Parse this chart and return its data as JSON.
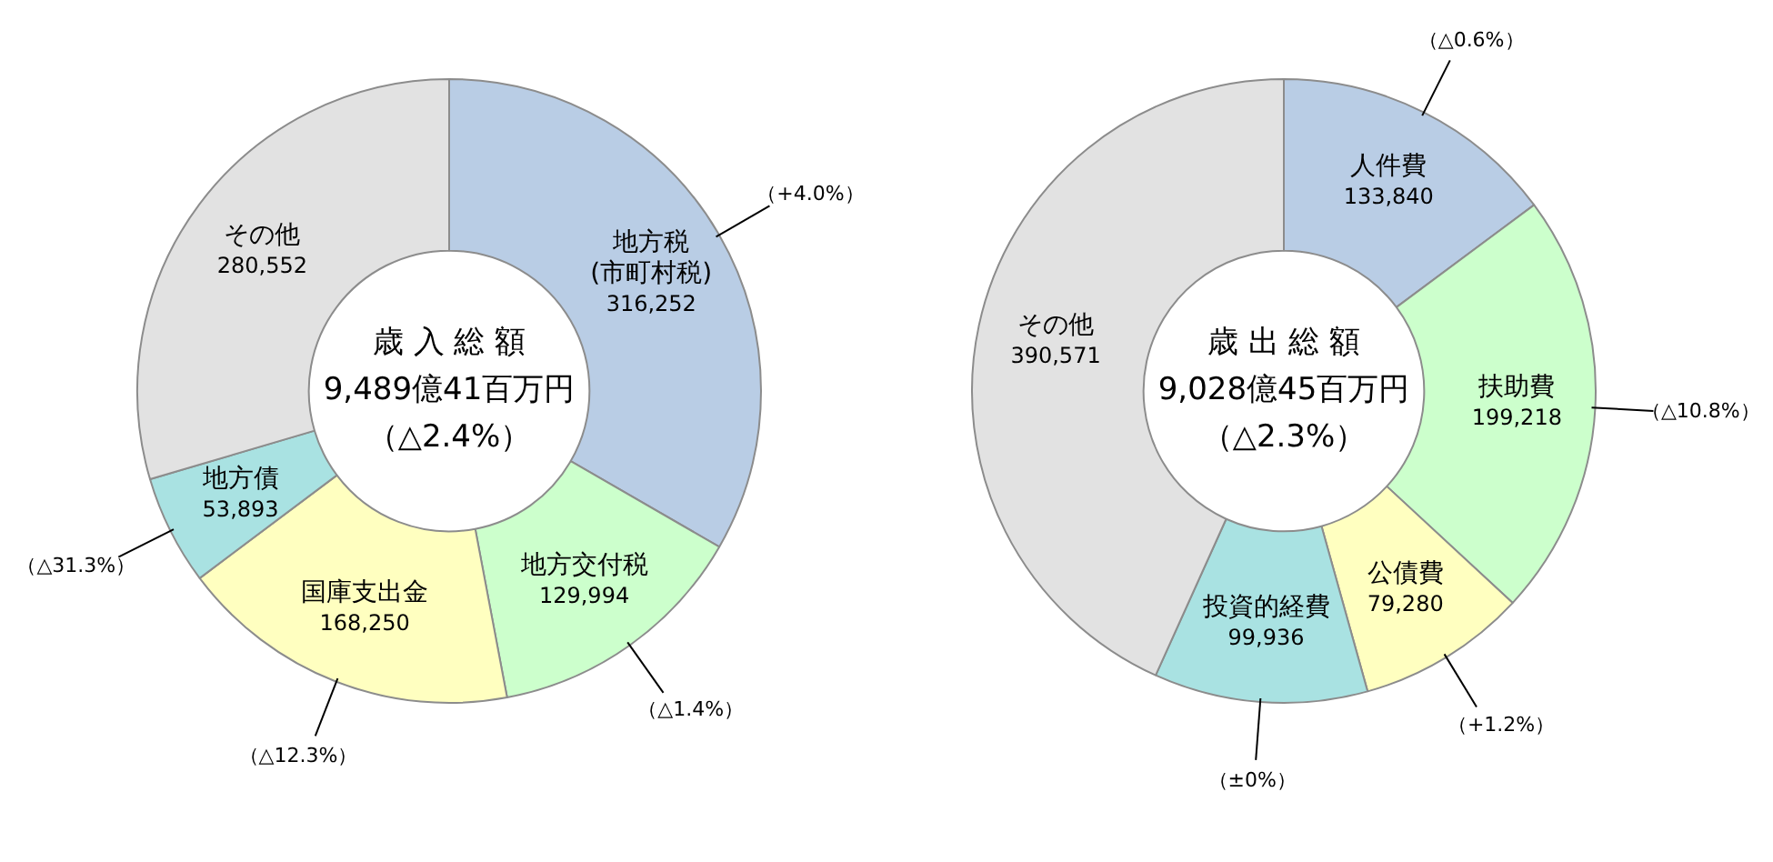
{
  "chart_data": [
    {
      "type": "donut",
      "title": "歳 入 総 額",
      "subtitle": "9,489億41百万円",
      "categories": [
        "地方税\n(市町村税)",
        "地方交付税",
        "国庫支出金",
        "地方債",
        "その他"
      ],
      "values": [
        316252,
        129994,
        168250,
        53893,
        280552
      ],
      "value_labels": [
        "316,252",
        "129,994",
        "168,250",
        "53,893",
        "280,552"
      ],
      "colors": [
        "#b9cde5",
        "#ccffcc",
        "#ffffc0",
        "#a9e2e2",
        "#e2e2e2"
      ],
      "legend": false,
      "annotations": [
        "（△2.4%）",
        {
          "text": "（+4.0%）",
          "x": "地方税\n(市町村税)"
        },
        {
          "text": "（△1.4%）",
          "x": "地方交付税"
        },
        {
          "text": "（△12.3%）",
          "x": "国庫支出金"
        },
        {
          "text": "（△31.3%）",
          "x": "地方債"
        }
      ]
    },
    {
      "type": "donut",
      "title": "歳 出 総 額",
      "subtitle": "9,028億45百万円",
      "categories": [
        "人件費",
        "扶助費",
        "公債費",
        "投資的経費",
        "その他"
      ],
      "values": [
        133840,
        199218,
        79280,
        99936,
        390571
      ],
      "value_labels": [
        "133,840",
        "199,218",
        "79,280",
        "99,936",
        "390,571"
      ],
      "colors": [
        "#b9cde5",
        "#ccffcc",
        "#ffffc0",
        "#a9e2e2",
        "#e2e2e2"
      ],
      "legend": false,
      "annotations": [
        "（△2.3%）",
        {
          "text": "（△0.6%）",
          "x": "人件費"
        },
        {
          "text": "（△10.8%）",
          "x": "扶助費"
        },
        {
          "text": "（+1.2%）",
          "x": "公債費"
        },
        {
          "text": "（±0%）",
          "x": "投資的経費"
        }
      ]
    }
  ]
}
